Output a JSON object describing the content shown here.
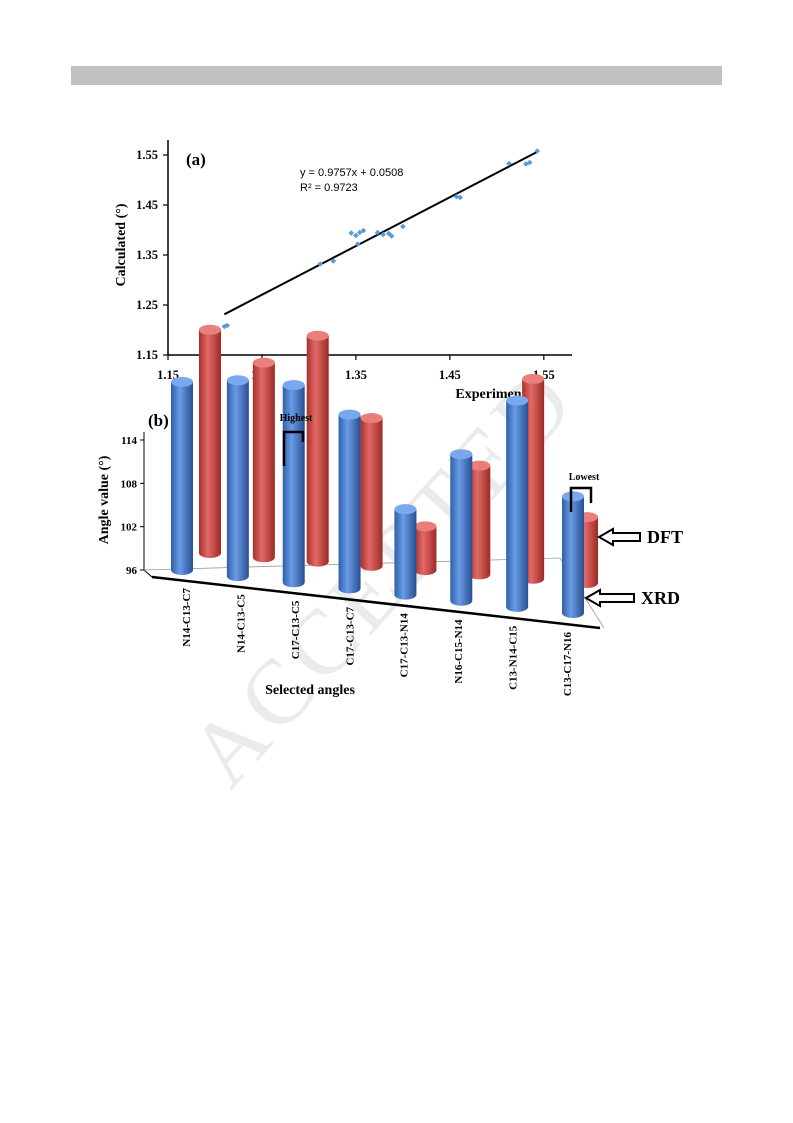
{
  "watermark": "ACCEPTED",
  "chart_data": [
    {
      "type": "scatter",
      "panel_label": "(a)",
      "xlabel": "Experiment (°)",
      "ylabel": "Calculated (°)",
      "xlim": [
        1.15,
        1.58
      ],
      "ylim": [
        1.15,
        1.58
      ],
      "x_ticks": [
        "1.15",
        "1.25",
        "1.35",
        "1.45",
        "1.55"
      ],
      "y_ticks": [
        "1.15",
        "1.25",
        "1.35",
        "1.45",
        "1.55"
      ],
      "equation": "y = 0.9757x + 0.0508",
      "r_squared": "R² = 0.9723",
      "trendline": {
        "slope": 0.9757,
        "intercept": 0.0508,
        "x_range": [
          1.21,
          1.543
        ]
      },
      "marker_color": "#5b9bd5",
      "points": [
        {
          "x": 1.21,
          "y": 1.207
        },
        {
          "x": 1.213,
          "y": 1.209
        },
        {
          "x": 1.312,
          "y": 1.332
        },
        {
          "x": 1.326,
          "y": 1.338
        },
        {
          "x": 1.345,
          "y": 1.394
        },
        {
          "x": 1.35,
          "y": 1.389
        },
        {
          "x": 1.352,
          "y": 1.372
        },
        {
          "x": 1.354,
          "y": 1.395
        },
        {
          "x": 1.358,
          "y": 1.399
        },
        {
          "x": 1.373,
          "y": 1.395
        },
        {
          "x": 1.379,
          "y": 1.391
        },
        {
          "x": 1.385,
          "y": 1.393
        },
        {
          "x": 1.388,
          "y": 1.388
        },
        {
          "x": 1.4,
          "y": 1.407
        },
        {
          "x": 1.457,
          "y": 1.467
        },
        {
          "x": 1.461,
          "y": 1.465
        },
        {
          "x": 1.513,
          "y": 1.533
        },
        {
          "x": 1.531,
          "y": 1.532
        },
        {
          "x": 1.535,
          "y": 1.535
        },
        {
          "x": 1.543,
          "y": 1.558
        }
      ]
    },
    {
      "type": "bar",
      "style": "3d-cylinder",
      "panel_label": "(b)",
      "xlabel": "Selected angles",
      "ylabel": "Angle value (°)",
      "ylim": [
        96,
        114
      ],
      "y_ticks": [
        "96",
        "102",
        "108",
        "114"
      ],
      "categories": [
        "N14-C13-C7",
        "N14-C13-C5",
        "C17-C13-C5",
        "C17-C13-C7",
        "C17-C13-N14",
        "N16-C15-N14",
        "C13-N14-C15",
        "C13-C17-N16"
      ],
      "series": [
        {
          "name": "XRD",
          "color": "#4a7fcf",
          "values": [
            109.7,
            110.3,
            110.4,
            108.6,
            101.8,
            106.5,
            111.1,
            104.2
          ]
        },
        {
          "name": "DFT",
          "color": "#d9534f",
          "values": [
            112.4,
            110.2,
            112.6,
            106.6,
            98.6,
            103.6,
            110.6,
            100.3
          ]
        }
      ],
      "annotations": {
        "highest": "Highest",
        "lowest": "Lowest"
      }
    }
  ]
}
